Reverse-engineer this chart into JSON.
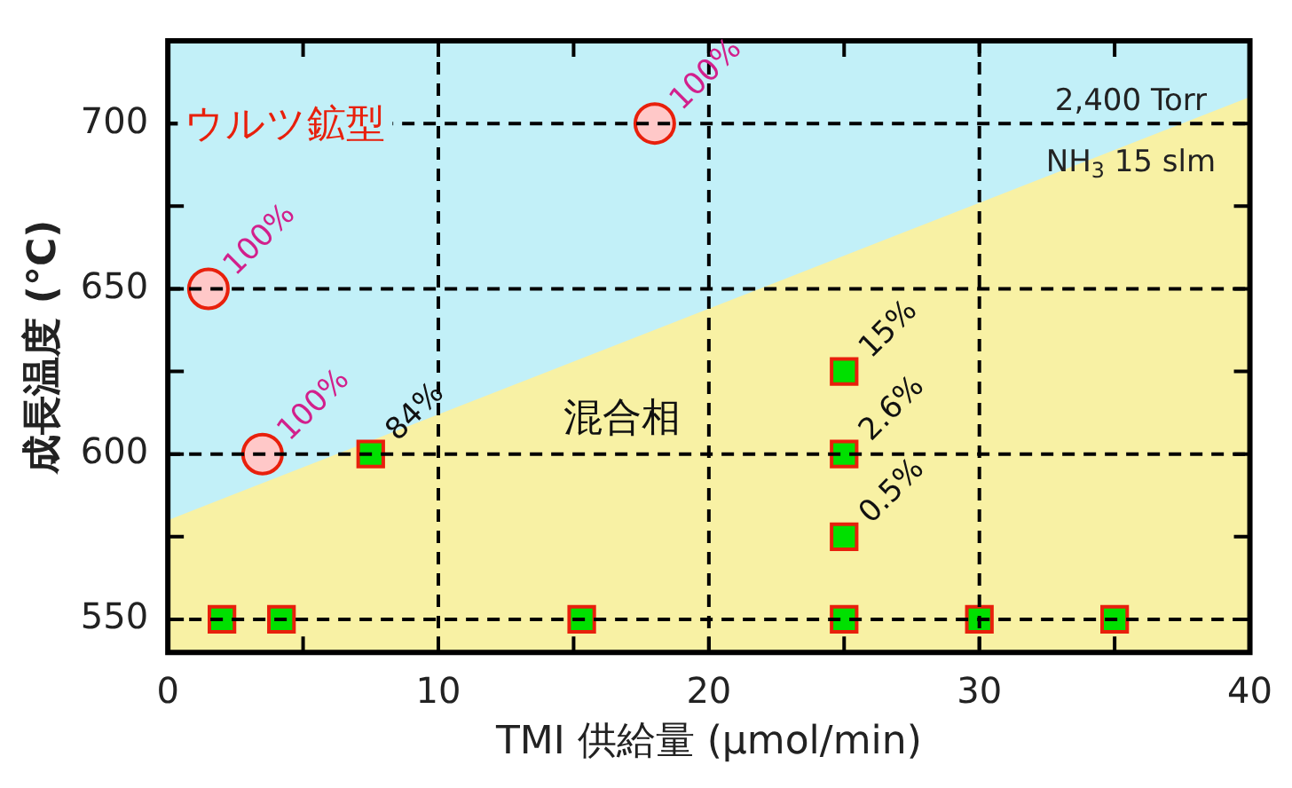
{
  "chart_data": {
    "type": "scatter",
    "xlabel": "TMI 供給量 (μmol/min)",
    "ylabel": "成長温度 (°C)",
    "xlim": [
      0,
      40
    ],
    "xticks": [
      0,
      {
        "value": 5,
        "label": null
      },
      10,
      {
        "value": 15,
        "label": null
      },
      20,
      {
        "value": 25,
        "label": null
      },
      30,
      {
        "value": 35,
        "label": null
      },
      40
    ],
    "ylim": [
      540,
      725
    ],
    "yticks": [
      550,
      {
        "value": 575,
        "label": null
      },
      600,
      {
        "value": 625,
        "label": null
      },
      650,
      {
        "value": 675,
        "label": null
      },
      700
    ],
    "grid": true,
    "line_style": "dashed",
    "legend": false,
    "bands": [
      {
        "axis": "y",
        "from": 540,
        "to": 725,
        "color": "#c2f0f8"
      }
    ],
    "annotations": [
      "ウルツ鉱型",
      "混合相",
      "2,400 Torr",
      "NH$_{3}$ 15 slm",
      {
        "text": "100%",
        "x": 1.5,
        "y": 650
      },
      {
        "text": "100%",
        "x": 3.5,
        "y": 600
      },
      {
        "text": "100%",
        "x": 18,
        "y": 700
      },
      {
        "text": "84%",
        "x": 7.5,
        "y": 600
      },
      {
        "text": "15%",
        "x": 25,
        "y": 625
      },
      {
        "text": "2.6%",
        "x": 25,
        "y": 600
      },
      {
        "text": "0.5%",
        "x": 25,
        "y": 575
      }
    ],
    "series": [
      {
        "type": "area",
        "x": [
          0,
          40
        ],
        "values": [
          580,
          708
        ],
        "color": "#f8f1a4"
      },
      {
        "type": "scatter",
        "marker": "circle",
        "color": "#ffc8c8",
        "x": [
          1.5,
          3.5,
          18
        ],
        "values": [
          650,
          600,
          700
        ]
      },
      {
        "type": "scatter",
        "marker": "square",
        "color": "#00e000",
        "x": [
          7.5,
          25,
          25,
          25,
          2,
          4.2,
          15.3,
          25,
          30,
          35
        ],
        "values": [
          600,
          625,
          600,
          575,
          550,
          550,
          550,
          550,
          550,
          550
        ]
      }
    ]
  }
}
